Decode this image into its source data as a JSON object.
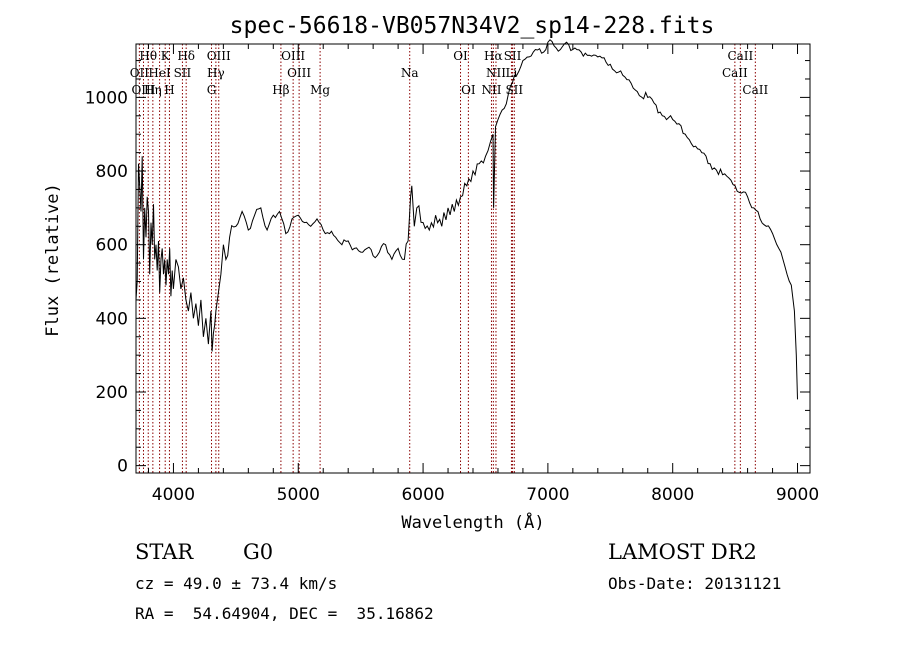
{
  "chart_data": {
    "type": "line",
    "title": "spec-56618-VB057N34V2_sp14-228.fits",
    "xlabel": "Wavelength (Å)",
    "ylabel": "Flux (relative)",
    "xlim": [
      3700,
      9100
    ],
    "ylim": [
      -20,
      1145
    ],
    "xticks": [
      4000,
      5000,
      6000,
      7000,
      8000,
      9000
    ],
    "yticks": [
      0,
      200,
      400,
      600,
      800,
      1000
    ],
    "grid": false,
    "series": [
      {
        "x": [
          3700,
          3710,
          3720,
          3730,
          3740,
          3750,
          3760,
          3770,
          3780,
          3790,
          3800,
          3810,
          3820,
          3830,
          3840,
          3850,
          3860,
          3870,
          3880,
          3890,
          3900,
          3910,
          3920,
          3930,
          3940,
          3950,
          3960,
          3970,
          3980,
          3990,
          4000,
          4020,
          4040,
          4060,
          4080,
          4100,
          4120,
          4140,
          4160,
          4180,
          4200,
          4220,
          4240,
          4260,
          4280,
          4300,
          4310,
          4320,
          4330,
          4340,
          4360,
          4380,
          4400,
          4420,
          4450,
          4500,
          4550,
          4600,
          4650,
          4700,
          4750,
          4800,
          4850,
          4900,
          4950,
          5000,
          5050,
          5100,
          5150,
          5200,
          5250,
          5300,
          5350,
          5400,
          5450,
          5500,
          5550,
          5600,
          5650,
          5700,
          5750,
          5800,
          5850,
          5880,
          5900,
          5910,
          5930,
          5950,
          6000,
          6050,
          6100,
          6150,
          6200,
          6250,
          6300,
          6350,
          6400,
          6450,
          6500,
          6540,
          6560,
          6565,
          6580,
          6600,
          6650,
          6700,
          6750,
          6800,
          6850,
          6900,
          6950,
          7000,
          7050,
          7100,
          7150,
          7200,
          7300,
          7400,
          7500,
          7600,
          7700,
          7800,
          7900,
          8000,
          8100,
          8200,
          8300,
          8400,
          8500,
          8550,
          8600,
          8650,
          8700,
          8750,
          8800,
          8850,
          8900,
          8950,
          8975,
          8990,
          9000
        ],
        "values": [
          450,
          500,
          820,
          760,
          690,
          840,
          560,
          700,
          620,
          730,
          690,
          520,
          660,
          600,
          710,
          560,
          600,
          530,
          610,
          470,
          560,
          590,
          520,
          560,
          490,
          560,
          520,
          590,
          460,
          530,
          480,
          560,
          540,
          480,
          510,
          450,
          420,
          470,
          400,
          440,
          380,
          450,
          350,
          400,
          330,
          420,
          310,
          360,
          380,
          420,
          470,
          520,
          600,
          560,
          620,
          650,
          690,
          640,
          680,
          700,
          640,
          680,
          690,
          630,
          670,
          680,
          660,
          650,
          670,
          640,
          630,
          620,
          600,
          610,
          590,
          580,
          590,
          570,
          580,
          600,
          560,
          590,
          560,
          610,
          730,
          760,
          650,
          700,
          660,
          640,
          680,
          650,
          700,
          690,
          730,
          760,
          800,
          820,
          840,
          880,
          900,
          700,
          920,
          940,
          970,
          1030,
          1060,
          1100,
          1110,
          1130,
          1120,
          1150,
          1140,
          1130,
          1150,
          1130,
          1120,
          1110,
          1090,
          1060,
          1020,
          1000,
          960,
          940,
          900,
          860,
          820,
          790,
          760,
          740,
          730,
          700,
          670,
          650,
          630,
          590,
          540,
          490,
          420,
          300,
          180
        ]
      }
    ],
    "emission_lines": [
      {
        "label": "Hθ",
        "x": 3798,
        "row": 0
      },
      {
        "label": "K",
        "x": 3934,
        "row": 0
      },
      {
        "label": "Hδ",
        "x": 4102,
        "row": 0
      },
      {
        "label": "OIII",
        "x": 4363,
        "row": 0
      },
      {
        "label": "OIII",
        "x": 4959,
        "row": 0
      },
      {
        "label": "OI",
        "x": 6300,
        "row": 0
      },
      {
        "label": "Hα",
        "x": 6563,
        "row": 0
      },
      {
        "label": "SII",
        "x": 6717,
        "row": 0
      },
      {
        "label": "CaII",
        "x": 8542,
        "row": 0
      },
      {
        "label": "OII",
        "x": 3727,
        "row": 1
      },
      {
        "label": "HeI",
        "x": 3889,
        "row": 1
      },
      {
        "label": "SII",
        "x": 4072,
        "row": 1
      },
      {
        "label": "Hγ",
        "x": 4340,
        "row": 1
      },
      {
        "label": "OIII",
        "x": 5007,
        "row": 1
      },
      {
        "label": "Na",
        "x": 5893,
        "row": 1
      },
      {
        "label": "NII",
        "x": 6584,
        "row": 1
      },
      {
        "label": "Li",
        "x": 6708,
        "row": 1
      },
      {
        "label": "CaII",
        "x": 8498,
        "row": 1
      },
      {
        "label": "OIII",
        "x": 3760,
        "row": 2
      },
      {
        "label": "Hη",
        "x": 3835,
        "row": 2
      },
      {
        "label": "H",
        "x": 3968,
        "row": 2
      },
      {
        "label": "G",
        "x": 4305,
        "row": 2
      },
      {
        "label": "Hβ",
        "x": 4861,
        "row": 2
      },
      {
        "label": "Mg",
        "x": 5175,
        "row": 2
      },
      {
        "label": "OI",
        "x": 6363,
        "row": 2
      },
      {
        "label": "NII",
        "x": 6548,
        "row": 2
      },
      {
        "label": "SII",
        "x": 6731,
        "row": 2
      },
      {
        "label": "CaII",
        "x": 8662,
        "row": 2
      }
    ]
  },
  "info": {
    "object": "STAR",
    "subclass": "G0",
    "survey": "LAMOST DR2",
    "cz": "cz = 49.0 ± 73.4 km/s",
    "obs_date": "Obs-Date: 20131121",
    "coords": "RA =  54.64904, DEC =  35.16862"
  },
  "colors": {
    "spectrum": "#000000",
    "line_markers": "#8b0000"
  }
}
